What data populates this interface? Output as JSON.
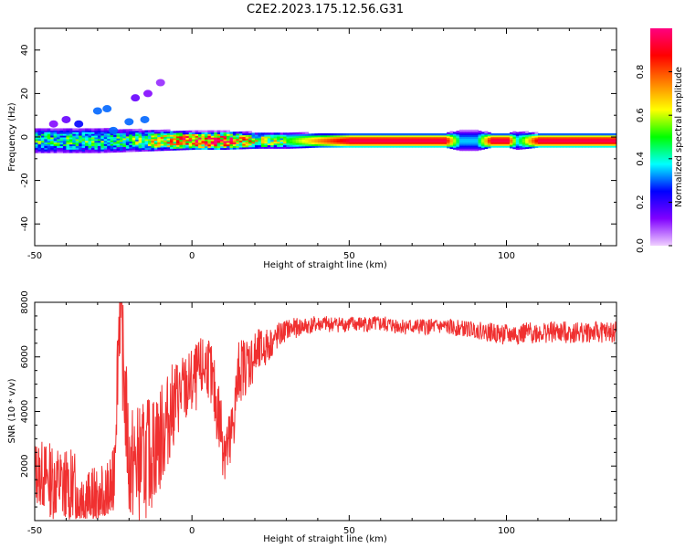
{
  "title": "C2E2.2023.175.12.56.G31",
  "chart_data": [
    {
      "type": "heatmap",
      "xlabel": "Height of straight line (km)",
      "ylabel": "Frequency (Hz)",
      "xlim": [
        -50,
        135
      ],
      "ylim": [
        -50,
        50
      ],
      "xticks": [
        -50,
        0,
        50,
        100
      ],
      "yticks": [
        -40,
        -20,
        0,
        20,
        40
      ],
      "colorbar": {
        "label": "Normalized spectral amplitude",
        "range": [
          0,
          1
        ],
        "ticks": [
          0.0,
          0.2,
          0.4,
          0.6,
          0.8
        ],
        "colors": [
          "#f0d0ff",
          "#8000ff",
          "#0000ff",
          "#00ffff",
          "#00ff00",
          "#ffff00",
          "#ff8000",
          "#ff0000",
          "#ff0080"
        ]
      },
      "line_center_hz": -2,
      "band": [
        {
          "x": -50,
          "halfwidth": 4,
          "amp": 0.45
        },
        {
          "x": -40,
          "halfwidth": 4,
          "amp": 0.45
        },
        {
          "x": -30,
          "halfwidth": 4,
          "amp": 0.45
        },
        {
          "x": -20,
          "halfwidth": 3.5,
          "amp": 0.45
        },
        {
          "x": -10,
          "halfwidth": 3,
          "amp": 0.65
        },
        {
          "x": 0,
          "halfwidth": 2.5,
          "amp": 0.85
        },
        {
          "x": 10,
          "halfwidth": 2.5,
          "amp": 0.85
        },
        {
          "x": 20,
          "halfwidth": 2,
          "amp": 0.6
        },
        {
          "x": 30,
          "halfwidth": 2,
          "amp": 0.5
        },
        {
          "x": 40,
          "halfwidth": 1.5,
          "amp": 0.75
        },
        {
          "x": 50,
          "halfwidth": 1.5,
          "amp": 0.95
        },
        {
          "x": 60,
          "halfwidth": 1.5,
          "amp": 0.95
        },
        {
          "x": 70,
          "halfwidth": 1.5,
          "amp": 0.95
        },
        {
          "x": 80,
          "halfwidth": 1.5,
          "amp": 0.95
        },
        {
          "x": 85,
          "halfwidth": 3,
          "amp": 0.35
        },
        {
          "x": 90,
          "halfwidth": 3,
          "amp": 0.35
        },
        {
          "x": 95,
          "halfwidth": 1.5,
          "amp": 0.95
        },
        {
          "x": 100,
          "halfwidth": 1.5,
          "amp": 0.95
        },
        {
          "x": 103,
          "halfwidth": 2.5,
          "amp": 0.4
        },
        {
          "x": 110,
          "halfwidth": 1.5,
          "amp": 0.95
        },
        {
          "x": 120,
          "halfwidth": 1.5,
          "amp": 0.95
        },
        {
          "x": 135,
          "halfwidth": 1.5,
          "amp": 0.95
        }
      ],
      "blobs": [
        {
          "x": -30,
          "y": 12,
          "amp": 0.3
        },
        {
          "x": -27,
          "y": 13,
          "amp": 0.3
        },
        {
          "x": -36,
          "y": 6,
          "amp": 0.25
        },
        {
          "x": -20,
          "y": 7,
          "amp": 0.3
        },
        {
          "x": -15,
          "y": 8,
          "amp": 0.3
        },
        {
          "x": -18,
          "y": 18,
          "amp": 0.15
        },
        {
          "x": -14,
          "y": 20,
          "amp": 0.12
        },
        {
          "x": -40,
          "y": 8,
          "amp": 0.15
        },
        {
          "x": -44,
          "y": 6,
          "amp": 0.12
        },
        {
          "x": -25,
          "y": 3,
          "amp": 0.3
        },
        {
          "x": -10,
          "y": 25,
          "amp": 0.1
        }
      ]
    },
    {
      "type": "line",
      "xlabel": "Height of straight line (km)",
      "ylabel": "SNR (10 * v/v)",
      "xlim": [
        -50,
        135
      ],
      "ylim": [
        0,
        8000
      ],
      "xticks": [
        -50,
        0,
        50,
        100
      ],
      "yticks": [
        2000,
        4000,
        6000,
        8000
      ],
      "color": "#f03030",
      "series": [
        {
          "x": [
            -50,
            -45,
            -40,
            -35,
            -30,
            -25,
            -23,
            -20,
            -15,
            -10,
            -5,
            0,
            5,
            10,
            12,
            15,
            20,
            25,
            30,
            40,
            50,
            60,
            70,
            80,
            90,
            100,
            110,
            120,
            135
          ],
          "y": [
            1800,
            1500,
            1200,
            1000,
            600,
            1200,
            8000,
            2000,
            2200,
            3000,
            4500,
            5000,
            5800,
            3000,
            2500,
            5500,
            6000,
            6500,
            7000,
            7200,
            7200,
            7200,
            7100,
            7100,
            7000,
            6800,
            6900,
            6900,
            6900
          ],
          "noise": [
            1200,
            1400,
            1500,
            1500,
            1200,
            1400,
            2000,
            2200,
            2200,
            2000,
            1500,
            1300,
            1200,
            1500,
            1500,
            1200,
            1000,
            600,
            400,
            300,
            300,
            300,
            300,
            300,
            300,
            400,
            400,
            400,
            400
          ]
        }
      ]
    }
  ]
}
